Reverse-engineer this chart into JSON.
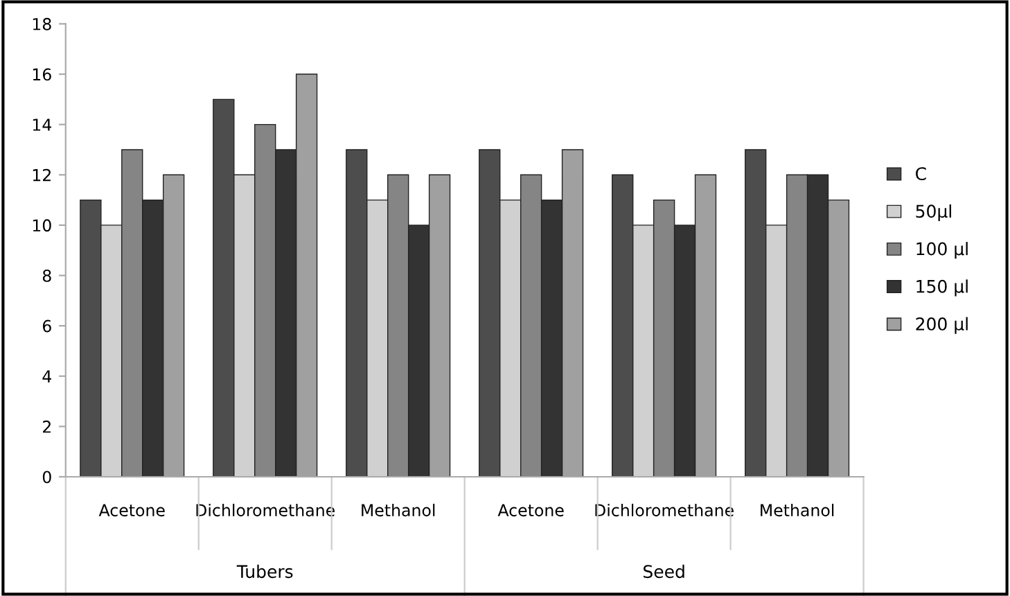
{
  "chart_data": {
    "type": "bar",
    "categories": [
      "Acetone",
      "Dichloromethane",
      "Methanol",
      "Acetone",
      "Dichloromethane",
      "Methanol"
    ],
    "series": [
      {
        "name": "C",
        "color": "#4d4d4d",
        "values": [
          11,
          15,
          13,
          13,
          12,
          13
        ]
      },
      {
        "name": "50µl",
        "color": "#d0d0d0",
        "values": [
          10,
          12,
          11,
          11,
          10,
          10
        ]
      },
      {
        "name": "100 µl",
        "color": "#858585",
        "values": [
          13,
          14,
          12,
          12,
          11,
          12
        ]
      },
      {
        "name": "150 µl",
        "color": "#333333",
        "values": [
          11,
          13,
          10,
          11,
          10,
          12
        ]
      },
      {
        "name": "200 µl",
        "color": "#a0a0a0",
        "values": [
          12,
          16,
          12,
          13,
          12,
          11
        ]
      }
    ],
    "annotations": [
      "Tubers",
      "Seed"
    ],
    "ylim": [
      0,
      18
    ],
    "yticks": [
      0,
      2,
      4,
      6,
      8,
      10,
      12,
      14,
      16,
      18
    ],
    "grid": false,
    "legend": "right"
  }
}
